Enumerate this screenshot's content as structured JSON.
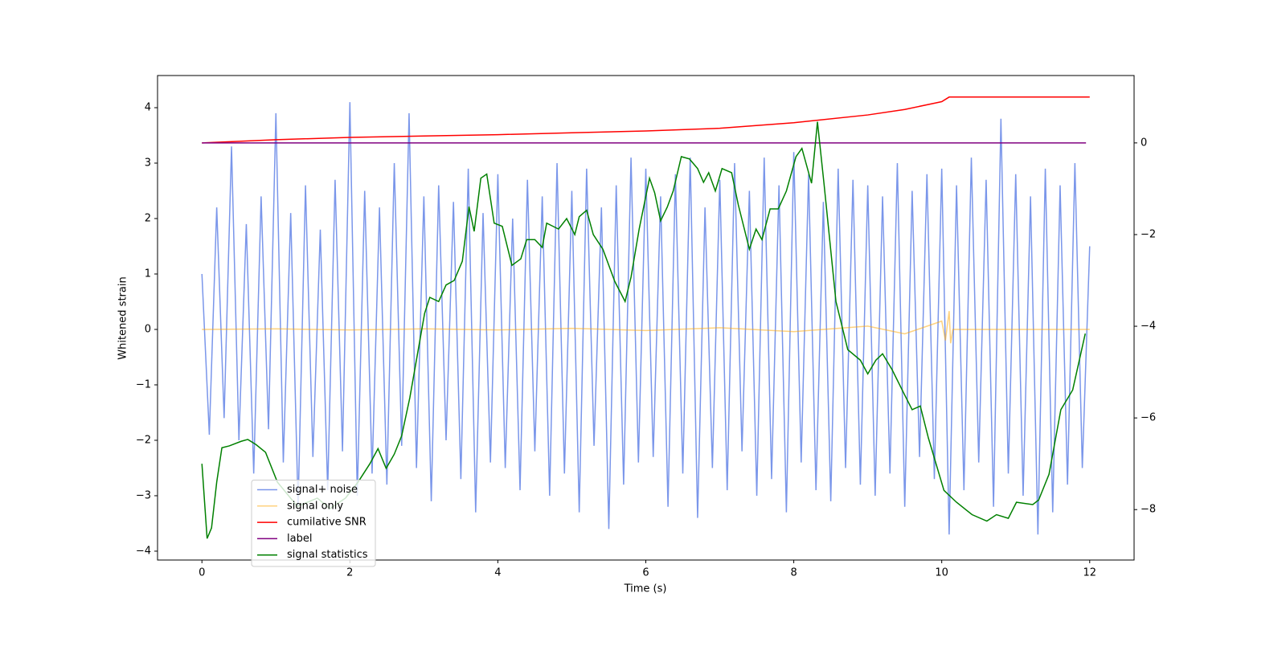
{
  "chart_data": {
    "type": "line",
    "xlabel": "Time (s)",
    "ylabel": "Whitened strain",
    "xlim": [
      -0.6,
      12.6
    ],
    "ylim": [
      -4.16,
      4.58
    ],
    "y2lim": [
      -9.1,
      1.47
    ],
    "xticks": [
      0,
      2,
      4,
      6,
      8,
      10,
      12
    ],
    "yticks": [
      {
        "value": -4,
        "label": "−4"
      },
      {
        "value": -3,
        "label": "−3"
      },
      {
        "value": -2,
        "label": "−2"
      },
      {
        "value": -1,
        "label": "−1"
      },
      0,
      1,
      2,
      3,
      4
    ],
    "y2ticks": [
      {
        "value": -8,
        "label": "−8"
      },
      {
        "value": -6,
        "label": "−6"
      },
      {
        "value": -4,
        "label": "−4"
      },
      {
        "value": -2,
        "label": "−2"
      },
      0
    ],
    "legend": "lower left",
    "series": [
      {
        "name": "signal+ noise",
        "color": "#4169e1",
        "axis": "y",
        "x": [
          0,
          0.1,
          0.2,
          0.3,
          0.4,
          0.5,
          0.6,
          0.7,
          0.8,
          0.9,
          1,
          1.1,
          1.2,
          1.3,
          1.4,
          1.5,
          1.6,
          1.7,
          1.8,
          1.9,
          2,
          2.1,
          2.2,
          2.3,
          2.4,
          2.5,
          2.6,
          2.7,
          2.8,
          2.9,
          3,
          3.1,
          3.2,
          3.3,
          3.4,
          3.5,
          3.6,
          3.7,
          3.8,
          3.9,
          4,
          4.1,
          4.2,
          4.3,
          4.4,
          4.5,
          4.6,
          4.7,
          4.8,
          4.9,
          5,
          5.1,
          5.2,
          5.3,
          5.4,
          5.5,
          5.6,
          5.7,
          5.8,
          5.9,
          6,
          6.1,
          6.2,
          6.3,
          6.4,
          6.5,
          6.6,
          6.7,
          6.8,
          6.9,
          7,
          7.1,
          7.2,
          7.3,
          7.4,
          7.5,
          7.6,
          7.7,
          7.8,
          7.9,
          8,
          8.1,
          8.2,
          8.3,
          8.4,
          8.5,
          8.6,
          8.7,
          8.8,
          8.9,
          9,
          9.1,
          9.2,
          9.3,
          9.4,
          9.5,
          9.6,
          9.7,
          9.8,
          9.9,
          10,
          10.1,
          10.2,
          10.3,
          10.4,
          10.5,
          10.6,
          10.7,
          10.8,
          10.9,
          11,
          11.1,
          11.2,
          11.3,
          11.4,
          11.5,
          11.6,
          11.7,
          11.8,
          11.9,
          12
        ],
        "values": [
          1.0,
          -1.9,
          2.2,
          -1.6,
          3.3,
          -2.0,
          1.9,
          -2.6,
          2.4,
          -1.8,
          3.9,
          -2.4,
          2.1,
          -3.2,
          2.6,
          -2.3,
          1.8,
          -2.9,
          2.7,
          -2.2,
          4.1,
          -3.0,
          2.5,
          -2.6,
          2.2,
          -2.8,
          3.0,
          -2.1,
          3.9,
          -2.5,
          2.4,
          -3.1,
          2.6,
          -2.0,
          2.3,
          -2.7,
          2.9,
          -3.3,
          2.1,
          -2.4,
          2.8,
          -2.5,
          2.0,
          -2.9,
          2.7,
          -2.2,
          2.4,
          -3.0,
          3.0,
          -2.6,
          2.5,
          -3.3,
          2.9,
          -2.1,
          2.2,
          -3.6,
          2.6,
          -2.8,
          3.1,
          -2.4,
          2.9,
          -2.3,
          2.4,
          -3.2,
          2.8,
          -2.6,
          3.1,
          -3.4,
          2.2,
          -2.5,
          2.7,
          -2.9,
          3.0,
          -2.2,
          2.5,
          -3.0,
          3.1,
          -2.7,
          2.6,
          -3.3,
          3.2,
          -2.4,
          2.8,
          -2.9,
          2.3,
          -3.1,
          2.9,
          -2.5,
          2.7,
          -2.8,
          2.6,
          -3.0,
          2.4,
          -2.6,
          3.0,
          -3.2,
          2.5,
          -2.3,
          2.8,
          -2.7,
          2.9,
          -3.7,
          2.6,
          -2.9,
          3.1,
          -2.4,
          2.7,
          -3.2,
          3.8,
          -2.6,
          2.8,
          -3.0,
          2.4,
          -3.7,
          2.9,
          -3.3,
          2.6,
          -2.8,
          3.0,
          -2.5,
          1.5
        ]
      },
      {
        "name": "signal only",
        "color": "#ffa500",
        "axis": "y",
        "x": [
          0,
          1,
          2,
          3,
          4,
          5,
          6,
          7,
          8,
          9,
          9.5,
          10,
          10.05,
          10.1,
          10.12,
          10.15,
          11,
          12
        ],
        "values": [
          0,
          0.01,
          -0.01,
          0.01,
          -0.01,
          0.02,
          -0.02,
          0.03,
          -0.04,
          0.06,
          -0.08,
          0.15,
          -0.2,
          0.33,
          -0.25,
          0,
          0,
          0
        ]
      },
      {
        "name": "cumilative SNR",
        "color": "#ff0000",
        "axis": "y2",
        "x": [
          0,
          1,
          2,
          3,
          4,
          5,
          6,
          7,
          8,
          9,
          9.5,
          10,
          10.1,
          12
        ],
        "values": [
          0,
          0.07,
          0.12,
          0.15,
          0.18,
          0.22,
          0.26,
          0.32,
          0.44,
          0.61,
          0.73,
          0.9,
          1.0,
          1.0
        ]
      },
      {
        "name": "label",
        "color": "#800080",
        "axis": "y2",
        "x": [
          0,
          11.95
        ],
        "values": [
          0,
          0
        ]
      },
      {
        "name": "signal statistics",
        "color": "#008000",
        "axis": "y2",
        "x": [
          0,
          0.07,
          0.13,
          0.2,
          0.27,
          0.37,
          0.53,
          0.62,
          0.73,
          0.86,
          1.02,
          1.29,
          1.56,
          1.73,
          1.94,
          2.11,
          2.27,
          2.38,
          2.49,
          2.6,
          2.7,
          2.81,
          3.01,
          3.08,
          3.2,
          3.3,
          3.41,
          3.52,
          3.61,
          3.68,
          3.77,
          3.85,
          3.95,
          4.06,
          4.19,
          4.31,
          4.39,
          4.5,
          4.6,
          4.66,
          4.82,
          4.93,
          5.04,
          5.1,
          5.2,
          5.29,
          5.42,
          5.58,
          5.72,
          5.8,
          5.91,
          6.05,
          6.12,
          6.2,
          6.29,
          6.37,
          6.48,
          6.59,
          6.7,
          6.78,
          6.85,
          6.94,
          7.03,
          7.16,
          7.25,
          7.4,
          7.49,
          7.57,
          7.68,
          7.79,
          7.9,
          8.03,
          8.11,
          8.24,
          8.32,
          8.41,
          8.57,
          8.73,
          8.9,
          9.0,
          9.11,
          9.2,
          9.33,
          9.49,
          9.6,
          9.71,
          9.82,
          10.03,
          10.2,
          10.41,
          10.61,
          10.74,
          10.9,
          11.01,
          11.23,
          11.31,
          11.45,
          11.61,
          11.77,
          11.94
        ],
        "values": [
          -7.0,
          -8.63,
          -8.4,
          -7.4,
          -6.65,
          -6.61,
          -6.51,
          -6.47,
          -6.58,
          -6.75,
          -7.4,
          -7.93,
          -7.75,
          -7.98,
          -7.75,
          -7.4,
          -7.0,
          -6.67,
          -7.1,
          -6.79,
          -6.39,
          -5.56,
          -3.72,
          -3.37,
          -3.46,
          -3.1,
          -3.0,
          -2.58,
          -1.39,
          -1.93,
          -0.77,
          -0.68,
          -1.75,
          -1.82,
          -2.67,
          -2.53,
          -2.11,
          -2.11,
          -2.28,
          -1.75,
          -1.88,
          -1.65,
          -2.0,
          -1.61,
          -1.47,
          -2.0,
          -2.32,
          -3.02,
          -3.46,
          -2.93,
          -1.88,
          -0.77,
          -1.09,
          -1.7,
          -1.4,
          -1.05,
          -0.3,
          -0.35,
          -0.56,
          -0.86,
          -0.65,
          -1.05,
          -0.56,
          -0.65,
          -1.35,
          -2.32,
          -1.88,
          -2.11,
          -1.44,
          -1.44,
          -1.05,
          -0.3,
          -0.12,
          -0.88,
          0.46,
          -0.91,
          -3.46,
          -4.51,
          -4.74,
          -5.04,
          -4.74,
          -4.6,
          -4.95,
          -5.47,
          -5.82,
          -5.74,
          -6.44,
          -7.58,
          -7.84,
          -8.11,
          -8.25,
          -8.11,
          -8.19,
          -7.84,
          -7.89,
          -7.79,
          -7.23,
          -5.82,
          -5.39,
          -4.16
        ]
      }
    ]
  }
}
